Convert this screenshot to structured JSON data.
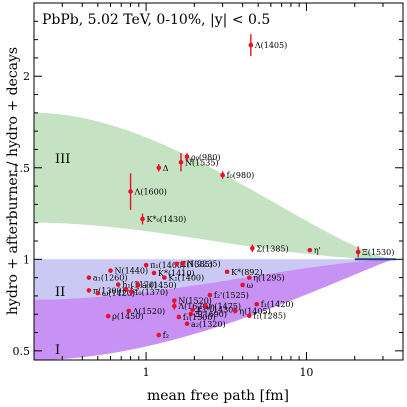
{
  "chart_data": {
    "type": "scatter",
    "title": "PbPb, 5.02 TeV, 0-10%, |y| < 0.5",
    "xlabel": "mean free path [fm]",
    "ylabel": "hydro + afterburner / hydro + decays",
    "xscale": "log",
    "xlim": [
      0.2,
      40
    ],
    "ylim": [
      0.45,
      2.4
    ],
    "xticks": [
      {
        "v": 1,
        "label": "1"
      },
      {
        "v": 10,
        "label": "10"
      }
    ],
    "yticks": [
      {
        "v": 0.5,
        "label": "0.5"
      },
      {
        "v": 1,
        "label": "1"
      },
      {
        "v": 1.5,
        "label": "1.5"
      },
      {
        "v": 2,
        "label": "2"
      }
    ],
    "grid": false,
    "region_labels": [
      "III",
      "II",
      "I"
    ],
    "colors": {
      "points": "#e8102a",
      "band_III": "#c5e3c3",
      "band_II": "#c9c9f4",
      "band_I": "#c792f3",
      "line": "#1e3a8c"
    },
    "points": [
      {
        "label": "Λ(1405)",
        "x": 4.5,
        "y": 2.17,
        "err": 0.06
      },
      {
        "label": "ρ₀(980)",
        "x": 1.8,
        "y": 1.56,
        "err": 0.02
      },
      {
        "label": "N(1535)",
        "x": 1.65,
        "y": 1.53,
        "err": 0.05
      },
      {
        "label": "Δ",
        "x": 1.2,
        "y": 1.5,
        "err": 0.02
      },
      {
        "label": "f₀(980)",
        "x": 3.0,
        "y": 1.46,
        "err": 0.02
      },
      {
        "label": "Λ(1600)",
        "x": 0.8,
        "y": 1.37,
        "err": 0.1
      },
      {
        "label": "K*₀(1430)",
        "x": 0.95,
        "y": 1.22,
        "err": 0.03
      },
      {
        "label": "Σ(1385)",
        "x": 4.6,
        "y": 1.06,
        "err": 0.02
      },
      {
        "label": "η'",
        "x": 10.5,
        "y": 1.05,
        "err": 0.01
      },
      {
        "label": "Ξ(1530)",
        "x": 21,
        "y": 1.04,
        "err": 0.03
      },
      {
        "label": "π₁(1400)",
        "x": 1.0,
        "y": 0.968,
        "err": 0.01
      },
      {
        "label": "Σ(1385)",
        "x": 1.55,
        "y": 0.975,
        "err": 0.01
      },
      {
        "label": "N(2235)",
        "x": 1.7,
        "y": 0.978,
        "err": 0.01
      },
      {
        "label": "N(1440)",
        "x": 0.6,
        "y": 0.938,
        "err": 0.01
      },
      {
        "label": "K*(1410)",
        "x": 1.12,
        "y": 0.925,
        "err": 0.01
      },
      {
        "label": "K*(892)",
        "x": 3.2,
        "y": 0.932,
        "err": 0.01
      },
      {
        "label": "a₁(1260)",
        "x": 0.44,
        "y": 0.9,
        "err": 0.01
      },
      {
        "label": "K₁(1400)",
        "x": 1.3,
        "y": 0.9,
        "err": 0.01
      },
      {
        "label": "η(1295)",
        "x": 4.4,
        "y": 0.9,
        "err": 0.01
      },
      {
        "label": "h₁(1170)",
        "x": 0.67,
        "y": 0.862,
        "err": 0.01
      },
      {
        "label": "a₀(1450)",
        "x": 0.89,
        "y": 0.86,
        "err": 0.02
      },
      {
        "label": "ω",
        "x": 4.0,
        "y": 0.86,
        "err": 0.01
      },
      {
        "label": "π(1300)",
        "x": 0.44,
        "y": 0.83,
        "err": 0.01
      },
      {
        "label": "f₂",
        "x": 0.75,
        "y": 0.835,
        "err": 0.01
      },
      {
        "label": "ω(1420)",
        "x": 0.5,
        "y": 0.815,
        "err": 0.01
      },
      {
        "label": "f₀(1370)",
        "x": 0.81,
        "y": 0.822,
        "err": 0.02
      },
      {
        "label": "f₂'(1525)",
        "x": 2.5,
        "y": 0.805,
        "err": 0.01
      },
      {
        "label": "N(1520)",
        "x": 1.5,
        "y": 0.775,
        "err": 0.01
      },
      {
        "label": "f₁(1420)",
        "x": 4.9,
        "y": 0.755,
        "err": 0.01
      },
      {
        "label": "Λ(1620)",
        "x": 1.5,
        "y": 0.745,
        "err": 0.02
      },
      {
        "label": "η(1475)",
        "x": 2.35,
        "y": 0.745,
        "err": 0.01
      },
      {
        "label": "Λ(1520)",
        "x": 0.78,
        "y": 0.718,
        "err": 0.01
      },
      {
        "label": "K₂*(1430)",
        "x": 1.95,
        "y": 0.725,
        "err": 0.01
      },
      {
        "label": "η(1405)",
        "x": 3.6,
        "y": 0.718,
        "err": 0.01
      },
      {
        "label": "Ξ(1690)",
        "x": 1.9,
        "y": 0.702,
        "err": 0.01
      },
      {
        "label": "f₁(1285)",
        "x": 4.4,
        "y": 0.692,
        "err": 0.01
      },
      {
        "label": "ρ(1450)",
        "x": 0.58,
        "y": 0.69,
        "err": 0.01
      },
      {
        "label": "f₁(1500)",
        "x": 1.6,
        "y": 0.685,
        "err": 0.01
      },
      {
        "label": "a₂(1320)",
        "x": 1.8,
        "y": 0.648,
        "err": 0.01
      },
      {
        "label": "f₂",
        "x": 1.2,
        "y": 0.586,
        "err": 0.01
      }
    ]
  }
}
